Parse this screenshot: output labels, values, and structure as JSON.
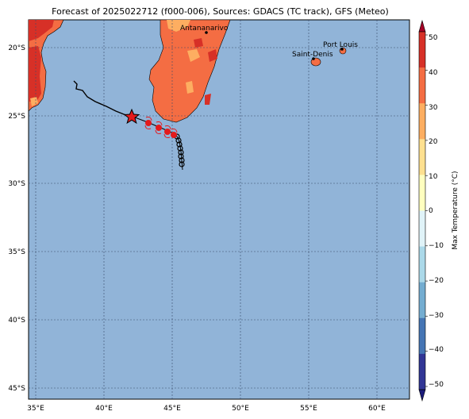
{
  "title": "Forecast of 2025022712 (f000-006), Sources: GDACS (TC track), GFS (Meteo)",
  "map": {
    "ocean_color": "#91b4d8",
    "land_color": "#f46d43",
    "lon_ticks": [
      "35°E",
      "40°E",
      "45°E",
      "50°E",
      "55°E",
      "60°E"
    ],
    "lat_ticks": [
      "20°S",
      "25°S",
      "30°S",
      "35°S",
      "40°S",
      "45°S"
    ],
    "cities": [
      {
        "name": "Antananarivo",
        "lon": 47.5,
        "lat": -18.9
      },
      {
        "name": "Port Louis",
        "lon": 57.5,
        "lat": -20.2
      },
      {
        "name": "Saint-Denis",
        "lon": 55.5,
        "lat": -20.9
      }
    ],
    "track_icon": "storm-symbol",
    "current_position_icon": "star-icon"
  },
  "colorbar": {
    "label": "Max Temperature (°C)",
    "ticks": [
      "50",
      "40",
      "30",
      "20",
      "10",
      "0",
      "−10",
      "−20",
      "−30",
      "−40",
      "−50"
    ],
    "colors": [
      "#a50026",
      "#d73027",
      "#f46d43",
      "#fdae61",
      "#fee090",
      "#ffffbf",
      "#e0f3f8",
      "#abd9e9",
      "#74add1",
      "#4575b4",
      "#313695",
      "#1a1a7a"
    ]
  }
}
